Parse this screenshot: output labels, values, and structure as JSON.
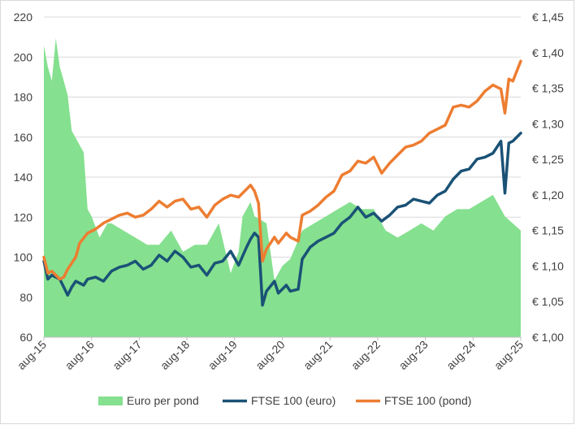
{
  "chart_data": {
    "type": "line",
    "title": "",
    "xlabel": "",
    "ylabel_left": "",
    "ylabel_right": "",
    "x_range": [
      2015.583,
      2025.583
    ],
    "x_tick_labels": [
      "aug-15",
      "aug-16",
      "aug-17",
      "aug-18",
      "aug-19",
      "aug-20",
      "aug-21",
      "aug-22",
      "aug-23",
      "aug-24",
      "aug-25"
    ],
    "y_left": {
      "min": 60,
      "max": 220,
      "ticks": [
        "60",
        "80",
        "100",
        "120",
        "140",
        "160",
        "180",
        "200",
        "220"
      ]
    },
    "y_right": {
      "min": 1.0,
      "max": 1.45,
      "ticks": [
        "€ 1,00",
        "€ 1,05",
        "€ 1,10",
        "€ 1,15",
        "€ 1,20",
        "€ 1,25",
        "€ 1,30",
        "€ 1,35",
        "€ 1,40",
        "€ 1,45"
      ]
    },
    "grid": "horizontal",
    "legend_position": "bottom",
    "series": [
      {
        "name": "Euro per pond",
        "kind": "area",
        "axis": "right",
        "color": "#85e08f",
        "x": [
          2015.583,
          2015.667,
          2015.75,
          2015.833,
          2015.917,
          2016.0,
          2016.083,
          2016.167,
          2016.25,
          2016.333,
          2016.417,
          2016.5,
          2016.583,
          2016.75,
          2016.917,
          2017.0,
          2017.25,
          2017.5,
          2017.75,
          2018.0,
          2018.25,
          2018.5,
          2018.75,
          2019.0,
          2019.25,
          2019.5,
          2019.667,
          2019.75,
          2019.917,
          2020.0,
          2020.25,
          2020.417,
          2020.583,
          2020.75,
          2021.0,
          2021.25,
          2021.5,
          2021.75,
          2022.0,
          2022.25,
          2022.5,
          2022.75,
          2023.0,
          2023.25,
          2023.5,
          2023.75,
          2024.0,
          2024.25,
          2024.5,
          2024.75,
          2025.0,
          2025.25,
          2025.583
        ],
        "values": [
          1.41,
          1.38,
          1.36,
          1.42,
          1.38,
          1.36,
          1.34,
          1.29,
          1.28,
          1.27,
          1.26,
          1.18,
          1.17,
          1.14,
          1.16,
          1.16,
          1.15,
          1.14,
          1.13,
          1.13,
          1.15,
          1.12,
          1.13,
          1.13,
          1.16,
          1.09,
          1.12,
          1.17,
          1.19,
          1.17,
          1.16,
          1.08,
          1.1,
          1.11,
          1.15,
          1.16,
          1.17,
          1.18,
          1.19,
          1.18,
          1.18,
          1.15,
          1.14,
          1.15,
          1.16,
          1.15,
          1.17,
          1.18,
          1.18,
          1.19,
          1.2,
          1.17,
          1.15
        ]
      },
      {
        "name": "FTSE 100 (euro)",
        "kind": "line",
        "axis": "left",
        "color": "#1a5276",
        "x": [
          2015.583,
          2015.667,
          2015.75,
          2015.917,
          2016.0,
          2016.083,
          2016.167,
          2016.25,
          2016.417,
          2016.5,
          2016.667,
          2016.833,
          2017.0,
          2017.167,
          2017.333,
          2017.5,
          2017.667,
          2017.833,
          2018.0,
          2018.167,
          2018.333,
          2018.5,
          2018.667,
          2018.833,
          2019.0,
          2019.167,
          2019.333,
          2019.5,
          2019.667,
          2019.833,
          2019.917,
          2020.0,
          2020.083,
          2020.167,
          2020.25,
          2020.417,
          2020.5,
          2020.667,
          2020.75,
          2020.917,
          2021.0,
          2021.167,
          2021.333,
          2021.5,
          2021.667,
          2021.833,
          2022.0,
          2022.167,
          2022.333,
          2022.5,
          2022.667,
          2022.833,
          2023.0,
          2023.167,
          2023.333,
          2023.5,
          2023.667,
          2023.833,
          2024.0,
          2024.167,
          2024.333,
          2024.5,
          2024.667,
          2024.833,
          2025.0,
          2025.167,
          2025.25,
          2025.333,
          2025.417,
          2025.583
        ],
        "values": [
          98,
          89,
          91,
          89,
          85,
          81,
          85,
          88,
          86,
          89,
          90,
          88,
          93,
          95,
          96,
          98,
          94,
          96,
          101,
          98,
          103,
          100,
          95,
          96,
          91,
          97,
          98,
          103,
          96,
          105,
          109,
          112,
          110,
          76,
          83,
          88,
          82,
          86,
          83,
          84,
          99,
          105,
          108,
          110,
          112,
          117,
          120,
          125,
          120,
          122,
          118,
          121,
          125,
          126,
          129,
          128,
          127,
          131,
          133,
          139,
          143,
          144,
          149,
          150,
          152,
          158,
          132,
          157,
          158,
          162
        ]
      },
      {
        "name": "FTSE 100 (pond)",
        "kind": "line",
        "axis": "left",
        "color": "#ed7d31",
        "x": [
          2015.583,
          2015.667,
          2015.75,
          2015.917,
          2016.0,
          2016.083,
          2016.167,
          2016.25,
          2016.333,
          2016.5,
          2016.667,
          2016.833,
          2017.0,
          2017.167,
          2017.333,
          2017.5,
          2017.667,
          2017.833,
          2018.0,
          2018.167,
          2018.333,
          2018.5,
          2018.667,
          2018.833,
          2019.0,
          2019.167,
          2019.333,
          2019.5,
          2019.667,
          2019.833,
          2019.917,
          2020.0,
          2020.083,
          2020.167,
          2020.25,
          2020.417,
          2020.5,
          2020.667,
          2020.75,
          2020.917,
          2021.0,
          2021.167,
          2021.333,
          2021.5,
          2021.667,
          2021.833,
          2022.0,
          2022.167,
          2022.333,
          2022.5,
          2022.667,
          2022.833,
          2023.0,
          2023.167,
          2023.333,
          2023.5,
          2023.667,
          2023.833,
          2024.0,
          2024.167,
          2024.333,
          2024.5,
          2024.667,
          2024.833,
          2025.0,
          2025.167,
          2025.25,
          2025.333,
          2025.417,
          2025.583
        ],
        "values": [
          100,
          92,
          93,
          89,
          90,
          94,
          97,
          100,
          107,
          112,
          114,
          117,
          119,
          121,
          122,
          120,
          121,
          124,
          128,
          125,
          128,
          129,
          124,
          125,
          120,
          126,
          129,
          131,
          130,
          134,
          136,
          133,
          127,
          98,
          104,
          110,
          107,
          112,
          110,
          108,
          121,
          123,
          126,
          130,
          133,
          141,
          143,
          148,
          147,
          150,
          142,
          147,
          151,
          155,
          156,
          158,
          162,
          164,
          166,
          175,
          176,
          175,
          178,
          183,
          186,
          184,
          172,
          189,
          188,
          198
        ]
      }
    ]
  }
}
